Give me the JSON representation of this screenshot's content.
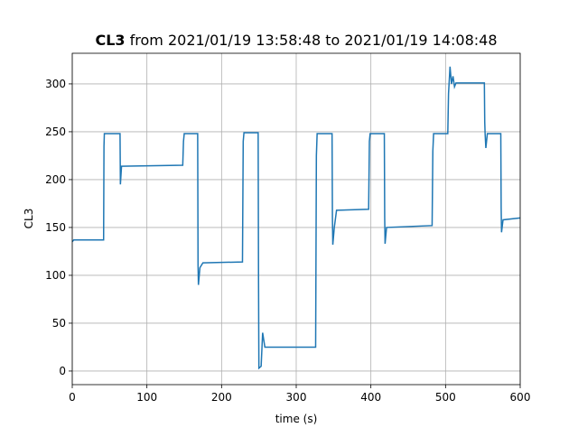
{
  "chart_data": {
    "type": "line",
    "title_bold": "CL3",
    "title": "from 2021/01/19 13:58:48 to 2021/01/19 14:08:48",
    "xlabel": "time (s)",
    "ylabel": "CL3",
    "xlim": [
      0,
      600
    ],
    "ylim": [
      -14.2,
      332
    ],
    "xticks": [
      0,
      100,
      200,
      300,
      400,
      500,
      600
    ],
    "yticks": [
      0,
      50,
      100,
      150,
      200,
      250,
      300
    ],
    "grid": true,
    "series": [
      {
        "name": "CL3",
        "color": "#1f77b4",
        "x": [
          0,
          2,
          42,
          42.5,
          43,
          64,
          64.5,
          66,
          148,
          149,
          150,
          168,
          168.5,
          169,
          171,
          175,
          228,
          229,
          230,
          249,
          249.5,
          250,
          253,
          255,
          258,
          326,
          327,
          328,
          348,
          348.5,
          349,
          351,
          354,
          397,
          398,
          399,
          418,
          418.5,
          419,
          421,
          482,
          483,
          484,
          503,
          504,
          506,
          508,
          510,
          512,
          514,
          552,
          552.5,
          553,
          554,
          556,
          574,
          574.5,
          575,
          577,
          600
        ],
        "values": [
          135,
          137,
          137,
          235,
          248,
          248,
          195,
          214,
          215,
          240,
          248,
          248,
          110,
          90,
          108,
          113,
          114,
          240,
          249,
          249,
          100,
          3,
          5,
          40,
          25,
          25,
          225,
          248,
          248,
          160,
          132,
          150,
          168,
          169,
          240,
          248,
          248,
          160,
          133,
          150,
          152,
          230,
          248,
          248,
          290,
          318,
          300,
          308,
          297,
          301,
          301,
          260,
          248,
          233,
          248,
          248,
          170,
          145,
          158,
          160
        ]
      }
    ]
  }
}
